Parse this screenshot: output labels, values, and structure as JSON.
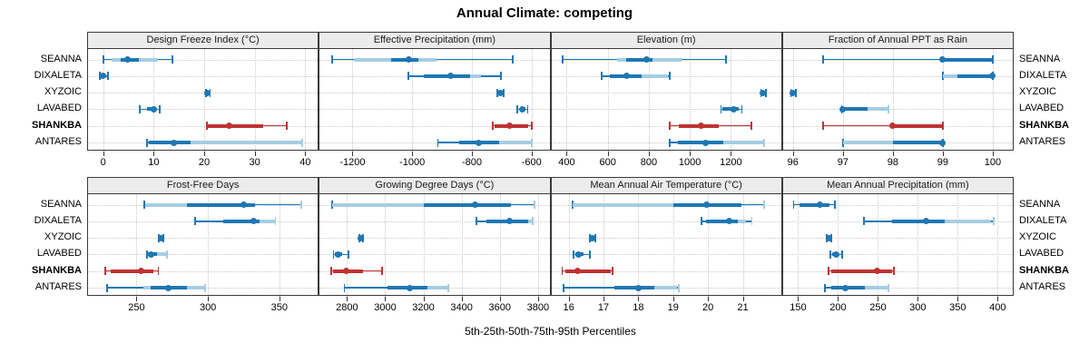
{
  "title": "Annual Climate: competing",
  "xlabel": "5th-25th-50th-75th-95th Percentiles",
  "sites": [
    "SEANNA",
    "DIXALETA",
    "XYZOIC",
    "LAVABED",
    "SHANKBA",
    "ANTARES"
  ],
  "highlight_site": "SHANKBA",
  "colors": {
    "primary": "#1f77b4",
    "primary_light": "#a5cde3",
    "highlight": "#bf3232",
    "highlight_light": "#e4a8a8",
    "grid": "#c9c9c9",
    "strip_bg": "#ececec",
    "border": "#3a3a3a"
  },
  "chart_data": {
    "type": "dotplot-percentiles",
    "percentiles": [
      5,
      25,
      50,
      75,
      95
    ],
    "note": "dot=50th, thick band=25th-75th, thin line with caps=5th-95th, light band=secondary range",
    "panels": [
      {
        "title": "Design Freeze Index (°C)",
        "row": 0,
        "range": [
          -3,
          42.5
        ],
        "ticks": [
          0,
          10,
          20,
          30,
          40
        ],
        "rows": [
          {
            "site": "SEANNA",
            "p5": 0,
            "p25": 3.4,
            "p50": 4.9,
            "p75": 7.1,
            "p95": 13.7,
            "light": [
              1.6,
              10.8
            ],
            "capR": "d"
          },
          {
            "site": "DIXALETA",
            "p5": -0.7,
            "p25": -0.3,
            "p50": 0,
            "p75": 0.4,
            "p95": 0.9,
            "light": null,
            "capR": "d"
          },
          {
            "site": "XYZOIC",
            "p5": 20.3,
            "p25": 20.5,
            "p50": 20.7,
            "p75": 20.9,
            "p95": 21.1,
            "light": null,
            "capR": "d"
          },
          {
            "site": "LAVABED",
            "p5": 7.2,
            "p25": 8.7,
            "p50": 10.1,
            "p75": 10.5,
            "p95": 11.1,
            "light": null,
            "capR": "d"
          },
          {
            "site": "SHANKBA",
            "p5": 20.4,
            "p25": 20.8,
            "p50": 25,
            "p75": 31.7,
            "p95": 36.3,
            "light": null,
            "capR": "d"
          },
          {
            "site": "ANTARES",
            "p5": 8.6,
            "p25": 9,
            "p50": 14,
            "p75": 17.3,
            "p95": 39.3,
            "light": [
              17.3,
              39.3
            ],
            "capR": "l"
          }
        ]
      },
      {
        "title": "Effective Precipitation (mm)",
        "row": 0,
        "range": [
          -1310,
          -540
        ],
        "ticks": [
          -1200,
          -1000,
          -800,
          -600
        ],
        "rows": [
          {
            "site": "SEANNA",
            "p5": -1270,
            "p25": -1070,
            "p50": -1010,
            "p75": -980,
            "p95": -665,
            "light": [
              -1195,
              -920
            ],
            "capR": "d"
          },
          {
            "site": "DIXALETA",
            "p5": -1015,
            "p25": -960,
            "p50": -870,
            "p75": -805,
            "p95": -705,
            "light": [
              -805,
              -770
            ],
            "capR": "d"
          },
          {
            "site": "XYZOIC",
            "p5": -715,
            "p25": -708,
            "p50": -703,
            "p75": -698,
            "p95": -695,
            "light": null,
            "capR": "d"
          },
          {
            "site": "LAVABED",
            "p5": -648,
            "p25": -638,
            "p50": -630,
            "p75": -622,
            "p95": -614,
            "light": null,
            "capR": "d"
          },
          {
            "site": "SHANKBA",
            "p5": -732,
            "p25": -723,
            "p50": -675,
            "p75": -610,
            "p95": -600,
            "light": null,
            "capR": "d"
          },
          {
            "site": "ANTARES",
            "p5": -915,
            "p25": -843,
            "p50": -777,
            "p75": -710,
            "p95": -600,
            "light": [
              -710,
              -600
            ],
            "capR": "l"
          }
        ]
      },
      {
        "title": "Elevation (m)",
        "row": 0,
        "range": [
          325,
          1445
        ],
        "ticks": [
          400,
          600,
          800,
          1000,
          1200
        ],
        "rows": [
          {
            "site": "SEANNA",
            "p5": 380,
            "p25": 690,
            "p50": 790,
            "p75": 820,
            "p95": 1175,
            "light": [
              645,
              960
            ],
            "capR": "d"
          },
          {
            "site": "DIXALETA",
            "p5": 570,
            "p25": 610,
            "p50": 690,
            "p75": 765,
            "p95": 900,
            "light": [
              765,
              895
            ],
            "capR": "d"
          },
          {
            "site": "XYZOIC",
            "p5": 1345,
            "p25": 1350,
            "p50": 1355,
            "p75": 1360,
            "p95": 1368,
            "light": null,
            "capR": "d"
          },
          {
            "site": "LAVABED",
            "p5": 1150,
            "p25": 1160,
            "p50": 1215,
            "p75": 1240,
            "p95": 1252,
            "light": null,
            "capR": "d"
          },
          {
            "site": "SHANKBA",
            "p5": 900,
            "p25": 945,
            "p50": 1055,
            "p75": 1140,
            "p95": 1300,
            "light": null,
            "capR": "d"
          },
          {
            "site": "ANTARES",
            "p5": 900,
            "p25": 940,
            "p50": 1075,
            "p75": 1165,
            "p95": 1360,
            "light": [
              1165,
              1360
            ],
            "capR": "l"
          }
        ]
      },
      {
        "title": "Fraction of Annual PPT as Rain",
        "row": 0,
        "range": [
          95.8,
          100.4
        ],
        "ticks": [
          96,
          97,
          98,
          99,
          100
        ],
        "rows": [
          {
            "site": "SEANNA",
            "p5": 96.6,
            "p25": 99,
            "p50": 99,
            "p75": 100,
            "p95": 100,
            "light": null,
            "capR": "d"
          },
          {
            "site": "DIXALETA",
            "p5": 99,
            "p25": 99.3,
            "p50": 100,
            "p75": 100,
            "p95": 100,
            "light": [
              99,
              100
            ],
            "capR": "d"
          },
          {
            "site": "XYZOIC",
            "p5": 95.95,
            "p25": 95.98,
            "p50": 96,
            "p75": 96.02,
            "p95": 96.05,
            "light": null,
            "capR": "d"
          },
          {
            "site": "LAVABED",
            "p5": 96.97,
            "p25": 97,
            "p50": 97,
            "p75": 97.5,
            "p95": 97.9,
            "light": [
              97.5,
              97.9
            ],
            "capR": "l"
          },
          {
            "site": "SHANKBA",
            "p5": 96.6,
            "p25": 98,
            "p50": 98,
            "p75": 99,
            "p95": 99,
            "light": null,
            "capR": "d"
          },
          {
            "site": "ANTARES",
            "p5": 97,
            "p25": 98,
            "p50": 99,
            "p75": 99,
            "p95": 99,
            "light": [
              97,
              98
            ],
            "capR": "d"
          }
        ]
      },
      {
        "title": "Frost-Free Days",
        "row": 1,
        "range": [
          216,
          377
        ],
        "ticks": [
          250,
          300,
          350
        ],
        "rows": [
          {
            "site": "SEANNA",
            "p5": 255,
            "p25": 285,
            "p50": 325,
            "p75": 333,
            "p95": 365,
            "light": [
              256,
              285
            ],
            "capR": "l"
          },
          {
            "site": "DIXALETA",
            "p5": 291,
            "p25": 311,
            "p50": 332,
            "p75": 336,
            "p95": 347,
            "light": [
              336,
              347
            ],
            "capR": "l"
          },
          {
            "site": "XYZOIC",
            "p5": 265.5,
            "p25": 266,
            "p50": 267,
            "p75": 268,
            "p95": 268.5,
            "light": null,
            "capR": "d"
          },
          {
            "site": "LAVABED",
            "p5": 257,
            "p25": 258,
            "p50": 260,
            "p75": 264,
            "p95": 271,
            "light": [
              264,
              271
            ],
            "capR": "l"
          },
          {
            "site": "SHANKBA",
            "p5": 228,
            "p25": 232,
            "p50": 253,
            "p75": 262,
            "p95": 265,
            "light": null,
            "capR": "d"
          },
          {
            "site": "ANTARES",
            "p5": 229,
            "p25": 260,
            "p50": 272,
            "p75": 285,
            "p95": 298,
            "light": [
              255,
              298
            ],
            "capR": "l"
          }
        ]
      },
      {
        "title": "Growing Degree Days (°C)",
        "row": 1,
        "range": [
          2657,
          3860
        ],
        "ticks": [
          2800,
          3000,
          3200,
          3400,
          3600,
          3800
        ],
        "rows": [
          {
            "site": "SEANNA",
            "p5": 2720,
            "p25": 3200,
            "p50": 3470,
            "p75": 3660,
            "p95": 3780,
            "light": [
              2720,
              3200
            ],
            "capR": "l"
          },
          {
            "site": "DIXALETA",
            "p5": 3475,
            "p25": 3530,
            "p50": 3650,
            "p75": 3750,
            "p95": 3770,
            "light": [
              3750,
              3770
            ],
            "capR": "l"
          },
          {
            "site": "XYZOIC",
            "p5": 2863,
            "p25": 2868,
            "p50": 2872,
            "p75": 2877,
            "p95": 2882,
            "light": null,
            "capR": "d"
          },
          {
            "site": "LAVABED",
            "p5": 2728,
            "p25": 2735,
            "p50": 2753,
            "p75": 2775,
            "p95": 2805,
            "light": null,
            "capR": "d"
          },
          {
            "site": "SHANKBA",
            "p5": 2715,
            "p25": 2725,
            "p50": 2795,
            "p75": 2885,
            "p95": 2980,
            "light": null,
            "capR": "d"
          },
          {
            "site": "ANTARES",
            "p5": 2785,
            "p25": 3010,
            "p50": 3130,
            "p75": 3220,
            "p95": 3330,
            "light": [
              3220,
              3330
            ],
            "capR": "l"
          }
        ]
      },
      {
        "title": "Mean Annual Air Temperature (°C)",
        "row": 1,
        "range": [
          15.5,
          22.1
        ],
        "ticks": [
          16,
          17,
          18,
          19,
          20,
          21
        ],
        "rows": [
          {
            "site": "SEANNA",
            "p5": 16.1,
            "p25": 19,
            "p50": 19.95,
            "p75": 20.95,
            "p95": 21.6,
            "light": [
              16.1,
              19
            ],
            "capR": "l"
          },
          {
            "site": "DIXALETA",
            "p5": 19.8,
            "p25": 19.95,
            "p50": 20.6,
            "p75": 20.85,
            "p95": 21.25,
            "light": [
              20.85,
              21.1
            ],
            "capR": "l"
          },
          {
            "site": "XYZOIC",
            "p5": 16.6,
            "p25": 16.64,
            "p50": 16.68,
            "p75": 16.72,
            "p95": 16.76,
            "light": null,
            "capR": "d"
          },
          {
            "site": "LAVABED",
            "p5": 16.12,
            "p25": 16.2,
            "p50": 16.27,
            "p75": 16.42,
            "p95": 16.6,
            "light": null,
            "capR": "d"
          },
          {
            "site": "SHANKBA",
            "p5": 15.8,
            "p25": 15.9,
            "p50": 16.25,
            "p75": 17.2,
            "p95": 17.25,
            "light": null,
            "capR": "d"
          },
          {
            "site": "ANTARES",
            "p5": 15.85,
            "p25": 17.3,
            "p50": 18,
            "p75": 18.45,
            "p95": 19.15,
            "light": [
              18.45,
              19.1
            ],
            "capR": "l"
          }
        ]
      },
      {
        "title": "Mean Annual Precipitation (mm)",
        "row": 1,
        "range": [
          131,
          419
        ],
        "ticks": [
          150,
          200,
          250,
          300,
          350,
          400
        ],
        "rows": [
          {
            "site": "SEANNA",
            "p5": 144,
            "p25": 152,
            "p50": 177,
            "p75": 189,
            "p95": 196,
            "light": null,
            "capR": "d"
          },
          {
            "site": "DIXALETA",
            "p5": 232,
            "p25": 268,
            "p50": 310,
            "p75": 334,
            "p95": 395,
            "light": [
              334,
              392
            ],
            "capR": "l"
          },
          {
            "site": "XYZOIC",
            "p5": 185.5,
            "p25": 187,
            "p50": 188.5,
            "p75": 190,
            "p95": 191.5,
            "light": null,
            "capR": "d"
          },
          {
            "site": "LAVABED",
            "p5": 190,
            "p25": 193,
            "p50": 198,
            "p75": 201,
            "p95": 205,
            "light": null,
            "capR": "d"
          },
          {
            "site": "SHANKBA",
            "p5": 188,
            "p25": 191,
            "p50": 249,
            "p75": 268,
            "p95": 270,
            "light": null,
            "capR": "d"
          },
          {
            "site": "ANTARES",
            "p5": 183,
            "p25": 191,
            "p50": 209,
            "p75": 234,
            "p95": 263,
            "light": [
              234,
              262
            ],
            "capR": "l"
          }
        ]
      }
    ]
  }
}
